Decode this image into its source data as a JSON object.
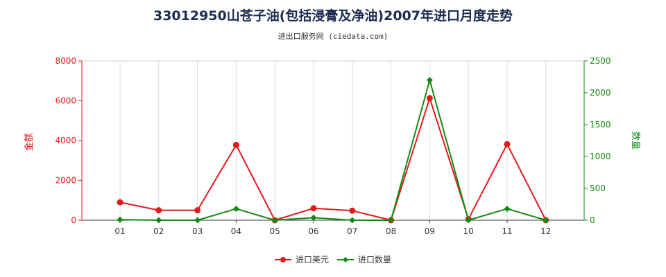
{
  "chart_data": {
    "type": "line",
    "title": "33012950山苍子油(包括浸膏及净油)2007年进口月度走势",
    "subtitle": "进出口服务网 (ciedata.com)",
    "categories": [
      "01",
      "02",
      "03",
      "04",
      "05",
      "06",
      "07",
      "08",
      "09",
      "10",
      "11",
      "12"
    ],
    "series": [
      {
        "name": "进口美元",
        "axis": "left",
        "color": "#e31a1c",
        "values": [
          900,
          500,
          500,
          3780,
          0,
          600,
          480,
          0,
          6130,
          50,
          3820,
          0
        ]
      },
      {
        "name": "进口数量",
        "axis": "right",
        "color": "#138a13",
        "values": [
          10,
          0,
          0,
          180,
          0,
          40,
          0,
          0,
          2200,
          0,
          180,
          0
        ]
      }
    ],
    "y_left": {
      "label": "金额",
      "ticks": [
        0,
        2000,
        4000,
        6000,
        8000
      ],
      "ylim": [
        0,
        8000
      ],
      "color": "#e31a1c"
    },
    "y_right": {
      "label": "数量",
      "ticks": [
        0,
        500,
        1000,
        1500,
        2000,
        2500
      ],
      "ylim": [
        0,
        2500
      ],
      "color": "#138a13"
    },
    "grid": "vertical",
    "legend_position": "bottom-center"
  }
}
